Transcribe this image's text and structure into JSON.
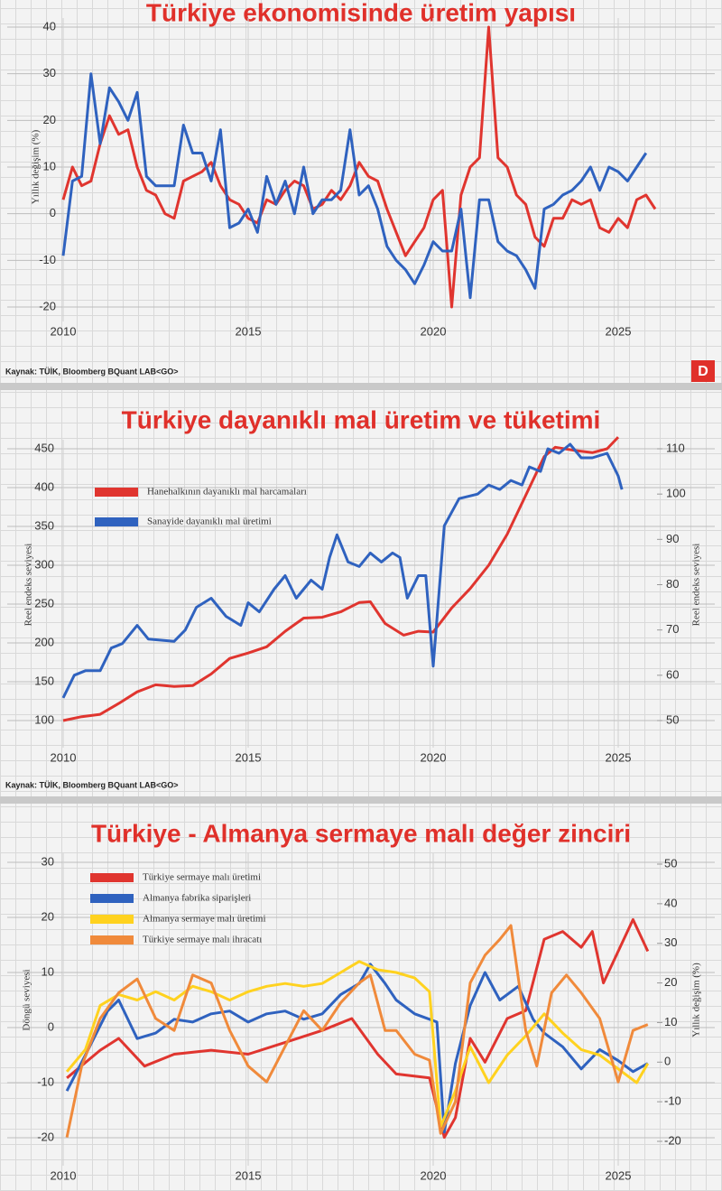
{
  "chart_data": [
    {
      "type": "line",
      "title": "Türkiye ekonomisinde üretim yapısı",
      "y_label": "Yıllık değişim (%)",
      "source": "Kaynak: TÜİK, Bloomberg BQuant LAB<GO>",
      "xlim": [
        2010,
        2026
      ],
      "xticks": [
        2010,
        2015,
        2020,
        2025
      ],
      "ylim": [
        -20,
        40
      ],
      "yticks": [
        -20,
        -10,
        0,
        10,
        20,
        30,
        40
      ],
      "grid": true,
      "series": [
        {
          "color": "#e0352f",
          "x": [
            2010,
            2010.25,
            2010.5,
            2010.75,
            2011,
            2011.25,
            2011.5,
            2011.75,
            2012,
            2012.25,
            2012.5,
            2012.75,
            2013,
            2013.25,
            2013.5,
            2013.75,
            2014,
            2014.25,
            2014.5,
            2014.75,
            2015,
            2015.25,
            2015.5,
            2015.75,
            2016,
            2016.25,
            2016.5,
            2016.75,
            2017,
            2017.25,
            2017.5,
            2017.75,
            2018,
            2018.25,
            2018.5,
            2018.75,
            2019,
            2019.25,
            2019.5,
            2019.75,
            2020,
            2020.25,
            2020.5,
            2020.75,
            2021,
            2021.25,
            2021.5,
            2021.75,
            2022,
            2022.25,
            2022.5,
            2022.75,
            2023,
            2023.25,
            2023.5,
            2023.75,
            2024,
            2024.25,
            2024.5,
            2024.75,
            2025,
            2025.25,
            2025.5,
            2025.75,
            2026
          ],
          "values": [
            3,
            10,
            6,
            7,
            15,
            21,
            17,
            18,
            10,
            5,
            4,
            0,
            -1,
            7,
            8,
            9,
            11,
            6,
            3,
            2,
            -1,
            -2,
            3,
            2,
            5,
            7,
            6,
            1,
            2,
            5,
            3,
            6,
            11,
            8,
            7,
            1,
            -4,
            -9,
            -6,
            -3,
            3,
            5,
            -20,
            4,
            10,
            12,
            40,
            12,
            10,
            4,
            2,
            -5,
            -7,
            -1,
            -1,
            3,
            2,
            3,
            -3,
            -4,
            -1,
            -3,
            3,
            4,
            1
          ]
        },
        {
          "color": "#2f62bf",
          "x": [
            2010,
            2010.25,
            2010.5,
            2010.75,
            2011,
            2011.25,
            2011.5,
            2011.75,
            2012,
            2012.25,
            2012.5,
            2012.75,
            2013,
            2013.25,
            2013.5,
            2013.75,
            2014,
            2014.25,
            2014.5,
            2014.75,
            2015,
            2015.25,
            2015.5,
            2015.75,
            2016,
            2016.25,
            2016.5,
            2016.75,
            2017,
            2017.25,
            2017.5,
            2017.75,
            2018,
            2018.25,
            2018.5,
            2018.75,
            2019,
            2019.25,
            2019.5,
            2019.75,
            2020,
            2020.25,
            2020.5,
            2020.75,
            2021,
            2021.25,
            2021.5,
            2021.75,
            2022,
            2022.25,
            2022.5,
            2022.75,
            2023,
            2023.25,
            2023.5,
            2023.75,
            2024,
            2024.25,
            2024.5,
            2024.75,
            2025,
            2025.25,
            2025.5,
            2025.75
          ],
          "values": [
            -9,
            7,
            8,
            30,
            15,
            27,
            24,
            20,
            26,
            8,
            6,
            6,
            6,
            19,
            13,
            13,
            7,
            18,
            -3,
            -2,
            1,
            -4,
            8,
            2,
            7,
            0,
            10,
            0,
            3,
            3,
            5,
            18,
            4,
            6,
            1,
            -7,
            -10,
            -12,
            -15,
            -11,
            -6,
            -8,
            -8,
            1,
            -18,
            3,
            3,
            -6,
            -8,
            -9,
            -12,
            -16,
            1,
            2,
            4,
            5,
            7,
            10,
            5,
            10,
            9,
            7,
            10,
            13
          ]
        }
      ]
    },
    {
      "type": "line",
      "title": "Türkiye dayanıklı mal üretim ve tüketimi",
      "y_label": "Reel endeks seviyesi",
      "y2_label": "Reel endeks seviyesi",
      "source": "Kaynak: TÜİK, Bloomberg BQuant LAB<GO>",
      "legend": "upper left",
      "xlim": [
        2010,
        2026
      ],
      "xticks": [
        2010,
        2015,
        2020,
        2025
      ],
      "ylim": [
        100,
        450
      ],
      "yticks": [
        100,
        150,
        200,
        250,
        300,
        350,
        400,
        450
      ],
      "y2lim": [
        50,
        110
      ],
      "y2ticks": [
        50,
        60,
        70,
        80,
        90,
        100,
        110
      ],
      "grid": true,
      "series": [
        {
          "name": "Hanehalkının dayanıklı mal harcamaları",
          "color": "#e0352f",
          "x": [
            2010,
            2010.5,
            2011,
            2011.5,
            2012,
            2012.5,
            2013,
            2013.5,
            2014,
            2014.5,
            2015,
            2015.5,
            2016,
            2016.5,
            2017,
            2017.5,
            2018,
            2018.3,
            2018.7,
            2019.2,
            2019.6,
            2020,
            2020.5,
            2021,
            2021.5,
            2022,
            2022.5,
            2023,
            2023.3,
            2023.8,
            2024.3,
            2024.7,
            2025
          ],
          "values": [
            100,
            105,
            108,
            122,
            137,
            146,
            144,
            145,
            160,
            180,
            187,
            195,
            215,
            232,
            233,
            240,
            252,
            253,
            225,
            210,
            215,
            214,
            245,
            270,
            300,
            340,
            390,
            440,
            452,
            448,
            445,
            450,
            465
          ]
        },
        {
          "name": "Sanayide dayanıklı mal üretimi",
          "color": "#2f62bf",
          "axis": "y2",
          "x": [
            2010,
            2010.3,
            2010.6,
            2011,
            2011.3,
            2011.6,
            2012,
            2012.3,
            2013,
            2013.3,
            2013.6,
            2014,
            2014.4,
            2014.8,
            2015,
            2015.3,
            2015.7,
            2016,
            2016.3,
            2016.7,
            2017,
            2017.2,
            2017.4,
            2017.7,
            2018,
            2018.3,
            2018.6,
            2018.9,
            2019.1,
            2019.3,
            2019.6,
            2019.8,
            2020,
            2020.3,
            2020.7,
            2021.2,
            2021.5,
            2021.8,
            2022.1,
            2022.4,
            2022.6,
            2022.9,
            2023.1,
            2023.4,
            2023.7,
            2024,
            2024.3,
            2024.7,
            2025,
            2025.1
          ],
          "values": [
            55,
            60,
            61,
            61,
            66,
            67,
            71,
            68,
            67.5,
            70,
            75,
            77,
            73,
            71,
            76,
            74,
            79,
            82,
            77,
            81,
            79,
            86,
            91,
            85,
            84,
            87,
            85,
            87,
            86,
            77,
            82,
            82,
            62,
            93,
            99,
            100,
            102,
            101,
            103,
            102,
            106,
            105,
            110,
            109,
            111,
            108,
            108,
            109,
            104,
            101
          ]
        }
      ]
    },
    {
      "type": "line",
      "title": "Türkiye - Almanya sermaye malı değer zinciri",
      "y_label": "Döngü seviyesi",
      "y2_label": "Yıllık değişim (%)",
      "legend": "upper left",
      "xlim": [
        2010,
        2026
      ],
      "xticks": [
        2010,
        2015,
        2020,
        2025
      ],
      "ylim": [
        -20,
        30
      ],
      "yticks": [
        -20,
        -10,
        0,
        10,
        20,
        30
      ],
      "y2lim": [
        -20,
        50
      ],
      "y2ticks": [
        -20,
        -10,
        0,
        10,
        20,
        30,
        40,
        50
      ],
      "grid": true,
      "series": [
        {
          "name": "Türkiye sermaye malı üretimi",
          "color": "#e0352f",
          "axis": "y2",
          "x": [
            2010.1,
            2011,
            2011.5,
            2012.2,
            2013,
            2014,
            2015,
            2016,
            2017,
            2017.8,
            2018.5,
            2019,
            2019.9,
            2020.3,
            2020.6,
            2021,
            2021.4,
            2022,
            2022.5,
            2023,
            2023.5,
            2024,
            2024.3,
            2024.6,
            2025,
            2025.4,
            2025.8
          ],
          "values": [
            -4,
            3,
            6,
            -1,
            2,
            3,
            2,
            5,
            8,
            11,
            2,
            -3,
            -4,
            -19,
            -14,
            6,
            0,
            11,
            13,
            31,
            33,
            29,
            33,
            20,
            28,
            36,
            28
          ]
        },
        {
          "name": "Almanya fabrika siparişleri",
          "color": "#2f62bf",
          "x": [
            2010.1,
            2010.6,
            2011.2,
            2011.5,
            2012,
            2012.5,
            2013,
            2013.5,
            2014,
            2014.5,
            2015,
            2015.5,
            2016,
            2016.5,
            2017,
            2017.5,
            2018,
            2018.3,
            2018.7,
            2019,
            2019.5,
            2019.9,
            2020.1,
            2020.3,
            2020.6,
            2021,
            2021.4,
            2021.8,
            2022.3,
            2022.7,
            2023,
            2023.5,
            2024,
            2024.5,
            2025,
            2025.4,
            2025.8
          ],
          "values": [
            -11.5,
            -5,
            3,
            5,
            -2,
            -1,
            1.5,
            1,
            2.5,
            3,
            1,
            2.5,
            3,
            1.5,
            2.5,
            6,
            8,
            11.5,
            8,
            5,
            2.5,
            1.5,
            1,
            -19,
            -6.5,
            4,
            10,
            5,
            7.5,
            1.5,
            -1,
            -3.5,
            -7.5,
            -4,
            -6,
            -8,
            -6.5
          ]
        },
        {
          "name": "Almanya sermaye malı üretimi",
          "color": "#ffd21f",
          "x": [
            2010.1,
            2010.6,
            2011,
            2011.5,
            2012,
            2012.5,
            2013,
            2013.5,
            2014,
            2014.5,
            2015,
            2015.5,
            2016,
            2016.5,
            2017,
            2017.5,
            2018,
            2018.5,
            2019,
            2019.5,
            2019.9,
            2020.2,
            2020.6,
            2021,
            2021.5,
            2022,
            2022.5,
            2023,
            2023.5,
            2024,
            2024.5,
            2025,
            2025.5,
            2025.8
          ],
          "values": [
            -8,
            -4,
            4,
            6,
            5,
            6.5,
            5,
            7.5,
            6.5,
            5,
            6.5,
            7.5,
            8,
            7.5,
            8,
            10,
            12,
            10.5,
            10,
            9,
            6.5,
            -18,
            -11.5,
            -3.5,
            -10,
            -5,
            -1.5,
            2.5,
            -1,
            -4,
            -5,
            -7.5,
            -10,
            -6.5
          ]
        },
        {
          "name": "Türkiye sermaye malı ihracatı",
          "color": "#f08a3b",
          "axis": "y2",
          "x": [
            2010.1,
            2010.5,
            2011,
            2011.5,
            2012,
            2012.5,
            2013,
            2013.5,
            2014,
            2014.5,
            2015,
            2015.5,
            2016,
            2016.5,
            2017,
            2017.5,
            2018,
            2018.3,
            2018.7,
            2019,
            2019.5,
            2019.9,
            2020.2,
            2020.6,
            2021,
            2021.4,
            2021.8,
            2022.1,
            2022.5,
            2022.8,
            2023.2,
            2023.6,
            2024,
            2024.5,
            2025,
            2025.4,
            2025.8
          ],
          "values": [
            -19,
            -1,
            11,
            17.5,
            21,
            11,
            8,
            22,
            20,
            8,
            -1,
            -5,
            4,
            13,
            8,
            15,
            20,
            22,
            8,
            8,
            2,
            0.5,
            -18,
            -10,
            20,
            27,
            31,
            34.5,
            8,
            -1,
            17.5,
            22,
            17.5,
            11,
            -5,
            8,
            9.5
          ]
        }
      ]
    }
  ],
  "logo": "D"
}
